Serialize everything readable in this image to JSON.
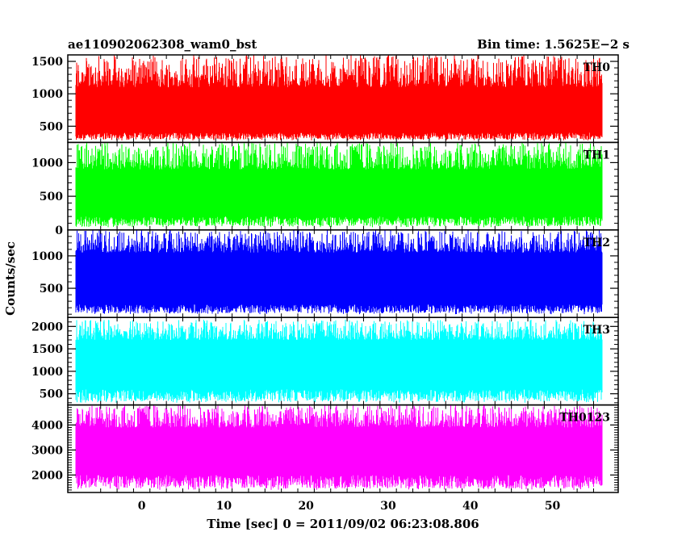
{
  "header": {
    "left_title": "ae110902062308_wam0_bst",
    "right_title": "Bin time: 1.5625E−2 s"
  },
  "chart_data": {
    "type": "line",
    "title": "ae110902062308_wam0_bst",
    "subtitle": "Bin time: 1.5625E−2 s",
    "xlabel": "Time [sec] 0 = 2011/09/02 06:23:08.806",
    "ylabel": "Counts/sec",
    "xlim": [
      -9,
      58
    ],
    "x_data_range": [
      -8,
      56
    ],
    "bin_time_s": 0.015625,
    "x_ticks": [
      0,
      10,
      20,
      30,
      40,
      50
    ],
    "x_tick_labels": [
      "0",
      "10",
      "20",
      "30",
      "40",
      "50"
    ],
    "grid": false,
    "legend": "none",
    "panels": [
      {
        "name": "TH0",
        "color": "#ff0000",
        "ylim": [
          250,
          1600
        ],
        "y_ticks": [
          500,
          1000,
          1500
        ],
        "y_tick_labels": [
          "500",
          "1000",
          "1500"
        ],
        "value_range": [
          280,
          1600
        ],
        "typical": [
          400,
          1100
        ]
      },
      {
        "name": "TH1",
        "color": "#00ff00",
        "ylim": [
          0,
          1300
        ],
        "y_ticks": [
          0,
          500,
          1000
        ],
        "y_tick_labels": [
          "0",
          "500",
          "1000"
        ],
        "value_range": [
          40,
          1300
        ],
        "typical": [
          200,
          900
        ]
      },
      {
        "name": "TH2",
        "color": "#0000ff",
        "ylim": [
          50,
          1400
        ],
        "y_ticks": [
          500,
          1000
        ],
        "y_tick_labels": [
          "500",
          "1000"
        ],
        "value_range": [
          100,
          1400
        ],
        "typical": [
          250,
          1050
        ]
      },
      {
        "name": "TH3",
        "color": "#00ffff",
        "ylim": [
          250,
          2200
        ],
        "y_ticks": [
          500,
          1000,
          1500,
          2000
        ],
        "y_tick_labels": [
          "500",
          "1000",
          "1500",
          "2000"
        ],
        "value_range": [
          300,
          2150
        ],
        "typical": [
          600,
          1700
        ]
      },
      {
        "name": "TH0123",
        "color": "#ff00ff",
        "ylim": [
          1300,
          4800
        ],
        "y_ticks": [
          2000,
          3000,
          4000
        ],
        "y_tick_labels": [
          "2000",
          "3000",
          "4000"
        ],
        "value_range": [
          1400,
          4800
        ],
        "typical": [
          2000,
          3900
        ]
      }
    ]
  }
}
